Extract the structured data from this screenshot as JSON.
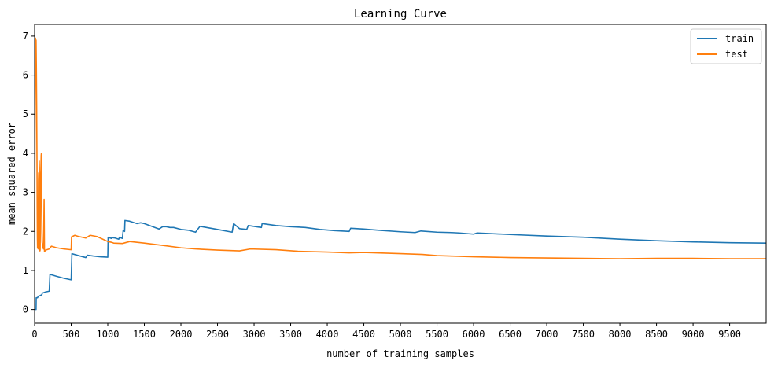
{
  "chart_data": {
    "type": "line",
    "title": "Learning Curve",
    "xlabel": "number of training samples",
    "ylabel": "mean squared error",
    "xlim": [
      0,
      9999
    ],
    "ylim": [
      -0.35,
      7.3
    ],
    "xticks": [
      0,
      500,
      1000,
      1500,
      2000,
      2500,
      3000,
      3500,
      4000,
      4500,
      5000,
      5500,
      6000,
      6500,
      7000,
      7500,
      8000,
      8500,
      9000,
      9500
    ],
    "yticks": [
      0,
      1,
      2,
      3,
      4,
      5,
      6,
      7
    ],
    "legend_position": "top-right",
    "grid": false,
    "series": [
      {
        "name": "train",
        "color": "#1f77b4",
        "points": [
          [
            0,
            0.0
          ],
          [
            20,
            0.0
          ],
          [
            22,
            0.3
          ],
          [
            40,
            0.3
          ],
          [
            50,
            0.34
          ],
          [
            80,
            0.36
          ],
          [
            100,
            0.38
          ],
          [
            105,
            0.42
          ],
          [
            150,
            0.45
          ],
          [
            200,
            0.47
          ],
          [
            210,
            0.9
          ],
          [
            300,
            0.85
          ],
          [
            400,
            0.8
          ],
          [
            500,
            0.76
          ],
          [
            510,
            1.43
          ],
          [
            600,
            1.38
          ],
          [
            700,
            1.33
          ],
          [
            720,
            1.39
          ],
          [
            800,
            1.37
          ],
          [
            900,
            1.35
          ],
          [
            1000,
            1.34
          ],
          [
            1005,
            1.85
          ],
          [
            1050,
            1.82
          ],
          [
            1060,
            1.84
          ],
          [
            1100,
            1.83
          ],
          [
            1150,
            1.8
          ],
          [
            1160,
            1.85
          ],
          [
            1200,
            1.82
          ],
          [
            1210,
            2.02
          ],
          [
            1230,
            2.0
          ],
          [
            1235,
            2.28
          ],
          [
            1300,
            2.26
          ],
          [
            1400,
            2.2
          ],
          [
            1450,
            2.22
          ],
          [
            1500,
            2.2
          ],
          [
            1700,
            2.06
          ],
          [
            1750,
            2.12
          ],
          [
            1800,
            2.12
          ],
          [
            1850,
            2.1
          ],
          [
            1900,
            2.1
          ],
          [
            2000,
            2.05
          ],
          [
            2100,
            2.03
          ],
          [
            2200,
            1.98
          ],
          [
            2260,
            2.13
          ],
          [
            2500,
            2.05
          ],
          [
            2700,
            1.98
          ],
          [
            2720,
            2.2
          ],
          [
            2800,
            2.07
          ],
          [
            2900,
            2.05
          ],
          [
            2920,
            2.15
          ],
          [
            3100,
            2.1
          ],
          [
            3110,
            2.2
          ],
          [
            3300,
            2.15
          ],
          [
            3500,
            2.12
          ],
          [
            3700,
            2.1
          ],
          [
            3900,
            2.05
          ],
          [
            4100,
            2.02
          ],
          [
            4300,
            2.0
          ],
          [
            4320,
            2.08
          ],
          [
            4500,
            2.06
          ],
          [
            4700,
            2.03
          ],
          [
            5000,
            1.99
          ],
          [
            5200,
            1.97
          ],
          [
            5280,
            2.01
          ],
          [
            5500,
            1.98
          ],
          [
            5700,
            1.97
          ],
          [
            5800,
            1.96
          ],
          [
            6000,
            1.93
          ],
          [
            6050,
            1.96
          ],
          [
            6500,
            1.92
          ],
          [
            7000,
            1.88
          ],
          [
            7500,
            1.85
          ],
          [
            8000,
            1.8
          ],
          [
            8500,
            1.76
          ],
          [
            9000,
            1.73
          ],
          [
            9500,
            1.71
          ],
          [
            9999,
            1.7
          ]
        ]
      },
      {
        "name": "test",
        "color": "#ff7f0e",
        "points": [
          [
            0,
            2.0
          ],
          [
            8,
            5.5
          ],
          [
            12,
            6.95
          ],
          [
            15,
            6.6
          ],
          [
            20,
            6.9
          ],
          [
            24,
            6.2
          ],
          [
            28,
            5.2
          ],
          [
            32,
            3.9
          ],
          [
            35,
            2.6
          ],
          [
            38,
            1.8
          ],
          [
            40,
            1.58
          ],
          [
            43,
            1.65
          ],
          [
            47,
            1.55
          ],
          [
            50,
            2.2
          ],
          [
            53,
            3.3
          ],
          [
            56,
            3.5
          ],
          [
            60,
            2.9
          ],
          [
            63,
            3.8
          ],
          [
            66,
            3.6
          ],
          [
            70,
            2.1
          ],
          [
            73,
            1.5
          ],
          [
            76,
            1.53
          ],
          [
            80,
            2.4
          ],
          [
            83,
            3.45
          ],
          [
            86,
            3.6
          ],
          [
            90,
            3.95
          ],
          [
            93,
            4.0
          ],
          [
            96,
            3.2
          ],
          [
            100,
            2.0
          ],
          [
            103,
            1.72
          ],
          [
            108,
            1.65
          ],
          [
            115,
            1.58
          ],
          [
            122,
            1.55
          ],
          [
            130,
            2.82
          ],
          [
            135,
            1.48
          ],
          [
            150,
            1.52
          ],
          [
            200,
            1.55
          ],
          [
            230,
            1.62
          ],
          [
            300,
            1.58
          ],
          [
            400,
            1.55
          ],
          [
            500,
            1.53
          ],
          [
            505,
            1.86
          ],
          [
            550,
            1.9
          ],
          [
            600,
            1.87
          ],
          [
            700,
            1.83
          ],
          [
            760,
            1.9
          ],
          [
            850,
            1.87
          ],
          [
            1000,
            1.74
          ],
          [
            1050,
            1.72
          ],
          [
            1080,
            1.7
          ],
          [
            1200,
            1.69
          ],
          [
            1300,
            1.74
          ],
          [
            1500,
            1.7
          ],
          [
            1800,
            1.63
          ],
          [
            2000,
            1.58
          ],
          [
            2200,
            1.55
          ],
          [
            2500,
            1.52
          ],
          [
            2800,
            1.5
          ],
          [
            2950,
            1.55
          ],
          [
            3300,
            1.53
          ],
          [
            3600,
            1.49
          ],
          [
            4000,
            1.47
          ],
          [
            4300,
            1.45
          ],
          [
            4500,
            1.46
          ],
          [
            5000,
            1.43
          ],
          [
            5300,
            1.41
          ],
          [
            5500,
            1.38
          ],
          [
            6000,
            1.35
          ],
          [
            6500,
            1.33
          ],
          [
            7000,
            1.32
          ],
          [
            7500,
            1.31
          ],
          [
            8000,
            1.3
          ],
          [
            8500,
            1.31
          ],
          [
            9000,
            1.31
          ],
          [
            9500,
            1.3
          ],
          [
            9999,
            1.3
          ]
        ]
      }
    ]
  }
}
